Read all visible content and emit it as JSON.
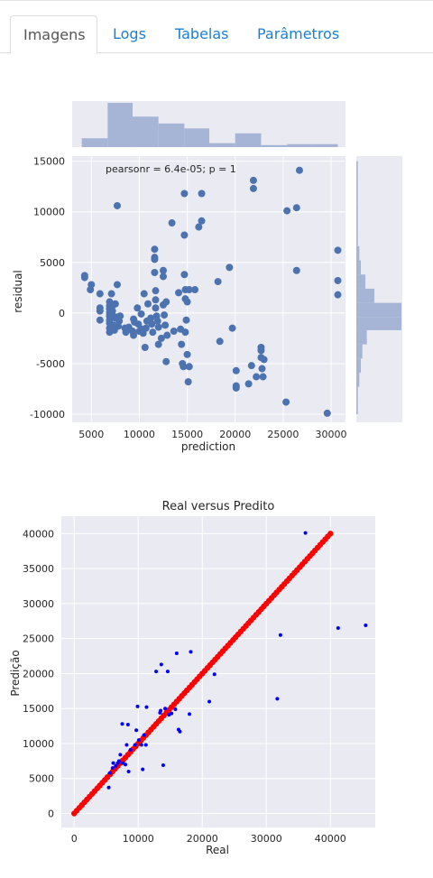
{
  "tabs": [
    {
      "label": "Imagens",
      "active": true
    },
    {
      "label": "Logs",
      "active": false
    },
    {
      "label": "Tabelas",
      "active": false
    },
    {
      "label": "Parâmetros",
      "active": false
    }
  ],
  "colors": {
    "tab_link": "#1a7fd4",
    "plot_bg": "#eaeaf2",
    "scatter_point": "#4c72b0",
    "hist_fill": "#a6b5d6",
    "pred_points": "#0000ff",
    "real_line": "#ff0000"
  },
  "chart_data": [
    {
      "type": "scatter",
      "annotation": "pearsonr = 6.4e-05; p = 1",
      "xlabel": "prediction",
      "ylabel": "residual",
      "xlim": [
        3000,
        31500
      ],
      "ylim": [
        -10800,
        15500
      ],
      "xticks": [
        5000,
        10000,
        15000,
        20000,
        25000,
        30000
      ],
      "yticks": [
        -10000,
        -5000,
        0,
        5000,
        10000,
        15000
      ],
      "grid": true,
      "marginal_x_hist": [
        {
          "bin": [
            4000,
            6700
          ],
          "count": 9
        },
        {
          "bin": [
            6700,
            9300
          ],
          "count": 45
        },
        {
          "bin": [
            9300,
            12000
          ],
          "count": 31
        },
        {
          "bin": [
            12000,
            14700
          ],
          "count": 24
        },
        {
          "bin": [
            14700,
            17300
          ],
          "count": 19
        },
        {
          "bin": [
            17300,
            20000
          ],
          "count": 4
        },
        {
          "bin": [
            20000,
            22700
          ],
          "count": 14
        },
        {
          "bin": [
            22700,
            25400
          ],
          "count": 2
        },
        {
          "bin": [
            25400,
            28000
          ],
          "count": 3
        },
        {
          "bin": [
            28000,
            30700
          ],
          "count": 3
        }
      ],
      "marginal_y_hist": [
        {
          "bin": [
            -10000,
            -8600
          ],
          "count": 1
        },
        {
          "bin": [
            -8600,
            -7300
          ],
          "count": 1
        },
        {
          "bin": [
            -7300,
            -5900
          ],
          "count": 2
        },
        {
          "bin": [
            -5900,
            -4500
          ],
          "count": 3
        },
        {
          "bin": [
            -4500,
            -3100
          ],
          "count": 4
        },
        {
          "bin": [
            -3100,
            -1700
          ],
          "count": 7
        },
        {
          "bin": [
            -1700,
            -400
          ],
          "count": 30
        },
        {
          "bin": [
            -400,
            1000
          ],
          "count": 30
        },
        {
          "bin": [
            1000,
            2400
          ],
          "count": 12
        },
        {
          "bin": [
            2400,
            3800
          ],
          "count": 6
        },
        {
          "bin": [
            3800,
            5200
          ],
          "count": 3
        },
        {
          "bin": [
            5200,
            6600
          ],
          "count": 2
        },
        {
          "bin": [
            6600,
            8000
          ],
          "count": 1
        },
        {
          "bin": [
            8000,
            9400
          ],
          "count": 1
        },
        {
          "bin": [
            9400,
            10800
          ],
          "count": 1
        },
        {
          "bin": [
            10800,
            12200
          ],
          "count": 1
        },
        {
          "bin": [
            12200,
            13600
          ],
          "count": 1
        },
        {
          "bin": [
            13600,
            15000
          ],
          "count": 1
        }
      ],
      "points": [
        [
          4300,
          3500
        ],
        [
          4300,
          3700
        ],
        [
          4900,
          2300
        ],
        [
          5000,
          2800
        ],
        [
          5900,
          1900
        ],
        [
          5900,
          500
        ],
        [
          5900,
          200
        ],
        [
          5900,
          -700
        ],
        [
          6900,
          1100
        ],
        [
          6900,
          700
        ],
        [
          6900,
          400
        ],
        [
          6900,
          0
        ],
        [
          6900,
          -300
        ],
        [
          6900,
          -700
        ],
        [
          6900,
          -1000
        ],
        [
          6900,
          -1500
        ],
        [
          6900,
          -1900
        ],
        [
          7100,
          1900
        ],
        [
          7200,
          700
        ],
        [
          7200,
          200
        ],
        [
          7200,
          -200
        ],
        [
          7300,
          -1200
        ],
        [
          7400,
          -1700
        ],
        [
          7500,
          900
        ],
        [
          7500,
          -500
        ],
        [
          7700,
          10600
        ],
        [
          7700,
          2800
        ],
        [
          7700,
          -400
        ],
        [
          7800,
          -1300
        ],
        [
          7900,
          -800
        ],
        [
          8000,
          -300
        ],
        [
          8500,
          -1500
        ],
        [
          8600,
          -1900
        ],
        [
          8900,
          -1400
        ],
        [
          9300,
          -1800
        ],
        [
          9400,
          -600
        ],
        [
          9400,
          -2200
        ],
        [
          9500,
          -900
        ],
        [
          9800,
          500
        ],
        [
          9900,
          -1100
        ],
        [
          10000,
          -1800
        ],
        [
          10200,
          -100
        ],
        [
          10300,
          -1600
        ],
        [
          10400,
          -2000
        ],
        [
          10500,
          1900
        ],
        [
          10600,
          -3400
        ],
        [
          10700,
          -1500
        ],
        [
          10800,
          -800
        ],
        [
          10900,
          900
        ],
        [
          11200,
          -500
        ],
        [
          11300,
          -1100
        ],
        [
          11400,
          -1900
        ],
        [
          11600,
          6300
        ],
        [
          11600,
          5500
        ],
        [
          11600,
          5300
        ],
        [
          11600,
          4000
        ],
        [
          11700,
          2200
        ],
        [
          11700,
          1300
        ],
        [
          11700,
          500
        ],
        [
          11800,
          -300
        ],
        [
          11900,
          -800
        ],
        [
          12000,
          -1400
        ],
        [
          12000,
          -3100
        ],
        [
          12300,
          -2500
        ],
        [
          12500,
          4200
        ],
        [
          12500,
          3600
        ],
        [
          12500,
          800
        ],
        [
          12600,
          -200
        ],
        [
          12700,
          -1200
        ],
        [
          12800,
          1100
        ],
        [
          12800,
          -4800
        ],
        [
          12900,
          -2200
        ],
        [
          13400,
          8900
        ],
        [
          13600,
          -1800
        ],
        [
          14100,
          2000
        ],
        [
          14300,
          -1600
        ],
        [
          14400,
          -3100
        ],
        [
          14500,
          -5000
        ],
        [
          14600,
          -5300
        ],
        [
          14700,
          11800
        ],
        [
          14700,
          7700
        ],
        [
          14700,
          3800
        ],
        [
          14800,
          2300
        ],
        [
          14800,
          1400
        ],
        [
          14800,
          -1900
        ],
        [
          14900,
          -700
        ],
        [
          15000,
          1100
        ],
        [
          15000,
          -4100
        ],
        [
          15100,
          -6800
        ],
        [
          15200,
          2300
        ],
        [
          15200,
          -5300
        ],
        [
          15800,
          2300
        ],
        [
          16200,
          8500
        ],
        [
          16500,
          9100
        ],
        [
          16500,
          11800
        ],
        [
          18200,
          3100
        ],
        [
          18400,
          -2800
        ],
        [
          19400,
          4500
        ],
        [
          19700,
          -1500
        ],
        [
          20100,
          -5700
        ],
        [
          20100,
          -7200
        ],
        [
          20100,
          -7400
        ],
        [
          21400,
          -7000
        ],
        [
          21700,
          -5200
        ],
        [
          21900,
          13100
        ],
        [
          21900,
          12300
        ],
        [
          22200,
          -6300
        ],
        [
          22700,
          -4400
        ],
        [
          22700,
          -3700
        ],
        [
          22700,
          -3400
        ],
        [
          22800,
          -5500
        ],
        [
          22900,
          -6300
        ],
        [
          23000,
          -4600
        ],
        [
          25300,
          -8800
        ],
        [
          25400,
          10100
        ],
        [
          26400,
          10400
        ],
        [
          26400,
          4200
        ],
        [
          26700,
          14100
        ],
        [
          29600,
          -9900
        ],
        [
          30700,
          6200
        ],
        [
          30700,
          3200
        ],
        [
          30700,
          1800
        ]
      ]
    },
    {
      "type": "scatter",
      "title": "Real versus Predito",
      "xlabel": "Real",
      "ylabel": "Predição",
      "xlim": [
        -2000,
        47000
      ],
      "ylim": [
        -2000,
        42500
      ],
      "xticks": [
        0,
        10000,
        20000,
        30000,
        40000
      ],
      "yticks": [
        0,
        5000,
        10000,
        15000,
        20000,
        25000,
        30000,
        35000,
        40000
      ],
      "grid": true,
      "series": [
        {
          "name": "",
          "style": "points",
          "color": "#0000ff",
          "points": [
            [
              5400,
              3700
            ],
            [
              5600,
              5800
            ],
            [
              6000,
              6500
            ],
            [
              6100,
              7200
            ],
            [
              6500,
              6800
            ],
            [
              6800,
              7200
            ],
            [
              7000,
              7500
            ],
            [
              7200,
              8400
            ],
            [
              7500,
              12800
            ],
            [
              7600,
              7200
            ],
            [
              8000,
              7000
            ],
            [
              8200,
              9800
            ],
            [
              8400,
              12700
            ],
            [
              8500,
              6000
            ],
            [
              8800,
              9100
            ],
            [
              9500,
              9800
            ],
            [
              9700,
              11900
            ],
            [
              9900,
              15300
            ],
            [
              10100,
              10500
            ],
            [
              10500,
              9800
            ],
            [
              10700,
              6300
            ],
            [
              10900,
              11200
            ],
            [
              11200,
              9800
            ],
            [
              11300,
              15200
            ],
            [
              12800,
              20300
            ],
            [
              13400,
              14400
            ],
            [
              13500,
              14700
            ],
            [
              13600,
              21300
            ],
            [
              13900,
              6900
            ],
            [
              14200,
              15000
            ],
            [
              14600,
              20300
            ],
            [
              14800,
              14100
            ],
            [
              15200,
              14300
            ],
            [
              15800,
              14900
            ],
            [
              16000,
              22900
            ],
            [
              16300,
              12000
            ],
            [
              16500,
              11700
            ],
            [
              18000,
              14200
            ],
            [
              18200,
              23100
            ],
            [
              21100,
              16000
            ],
            [
              21900,
              19900
            ],
            [
              31700,
              16400
            ],
            [
              32200,
              25500
            ],
            [
              36100,
              40100
            ],
            [
              41200,
              26500
            ],
            [
              45500,
              26900
            ]
          ]
        },
        {
          "name": "",
          "style": "thick-line-of-points",
          "color": "#ff0000",
          "x_range": [
            0,
            40000
          ],
          "y_equals_x": true
        }
      ]
    }
  ]
}
